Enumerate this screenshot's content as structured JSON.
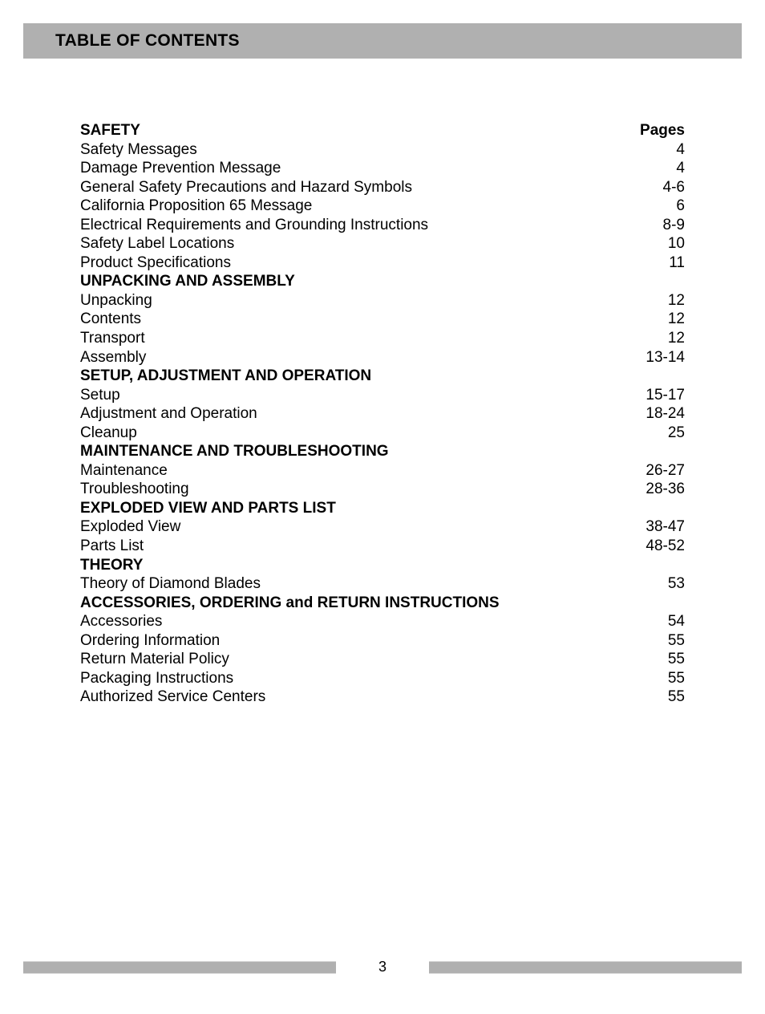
{
  "page_title": "TABLE OF CONTENTS",
  "page_number": "3",
  "pages_column_header": "Pages",
  "header_bar_color": "#b0b0b0",
  "footer_bar_color": "#b0b0b0",
  "font_family": "Helvetica Neue, Helvetica, Arial, sans-serif",
  "title_fontsize": 21,
  "body_fontsize": 19,
  "toc": [
    {
      "label": "SAFETY",
      "pages": "Pages",
      "bold": true
    },
    {
      "label": "Safety Messages",
      "pages": "4",
      "bold": false
    },
    {
      "label": "Damage Prevention Message",
      "pages": "4",
      "bold": false
    },
    {
      "label": "General Safety Precautions and Hazard Symbols",
      "pages": "4-6",
      "bold": false
    },
    {
      "label": "California Proposition 65 Message",
      "pages": "6",
      "bold": false
    },
    {
      "label": "Electrical Requirements and Grounding Instructions",
      "pages": "8-9",
      "bold": false
    },
    {
      "label": "Safety Label Locations",
      "pages": "10",
      "bold": false
    },
    {
      "label": "Product Specifications",
      "pages": "11",
      "bold": false
    },
    {
      "label": "UNPACKING AND ASSEMBLY",
      "pages": "",
      "bold": true
    },
    {
      "label": "Unpacking",
      "pages": "12",
      "bold": false
    },
    {
      "label": "Contents",
      "pages": "12",
      "bold": false
    },
    {
      "label": "Transport",
      "pages": "12",
      "bold": false
    },
    {
      "label": "Assembly",
      "pages": "13-14",
      "bold": false
    },
    {
      "label": "SETUP, ADJUSTMENT AND OPERATION",
      "pages": "",
      "bold": true
    },
    {
      "label": "Setup",
      "pages": "15-17",
      "bold": false
    },
    {
      "label": "Adjustment and Operation",
      "pages": "18-24",
      "bold": false
    },
    {
      "label": "Cleanup",
      "pages": "25",
      "bold": false
    },
    {
      "label": "MAINTENANCE AND TROUBLESHOOTING",
      "pages": "",
      "bold": true
    },
    {
      "label": "Maintenance",
      "pages": "26-27",
      "bold": false
    },
    {
      "label": "Troubleshooting",
      "pages": "28-36",
      "bold": false
    },
    {
      "label": "EXPLODED VIEW AND PARTS LIST",
      "pages": "",
      "bold": true
    },
    {
      "label": "Exploded View",
      "pages": "38-47",
      "bold": false
    },
    {
      "label": "Parts List",
      "pages": "48-52",
      "bold": false
    },
    {
      "label": "THEORY",
      "pages": "",
      "bold": true
    },
    {
      "label": "Theory of Diamond Blades",
      "pages": "53",
      "bold": false
    },
    {
      "label": "ACCESSORIES, ORDERING and RETURN INSTRUCTIONS",
      "pages": "",
      "bold": true
    },
    {
      "label": "Accessories",
      "pages": "54",
      "bold": false
    },
    {
      "label": "Ordering Information",
      "pages": "55",
      "bold": false
    },
    {
      "label": "Return Material Policy",
      "pages": "55",
      "bold": false
    },
    {
      "label": "Packaging Instructions",
      "pages": "55",
      "bold": false
    },
    {
      "label": "Authorized Service Centers",
      "pages": "55",
      "bold": false
    }
  ]
}
